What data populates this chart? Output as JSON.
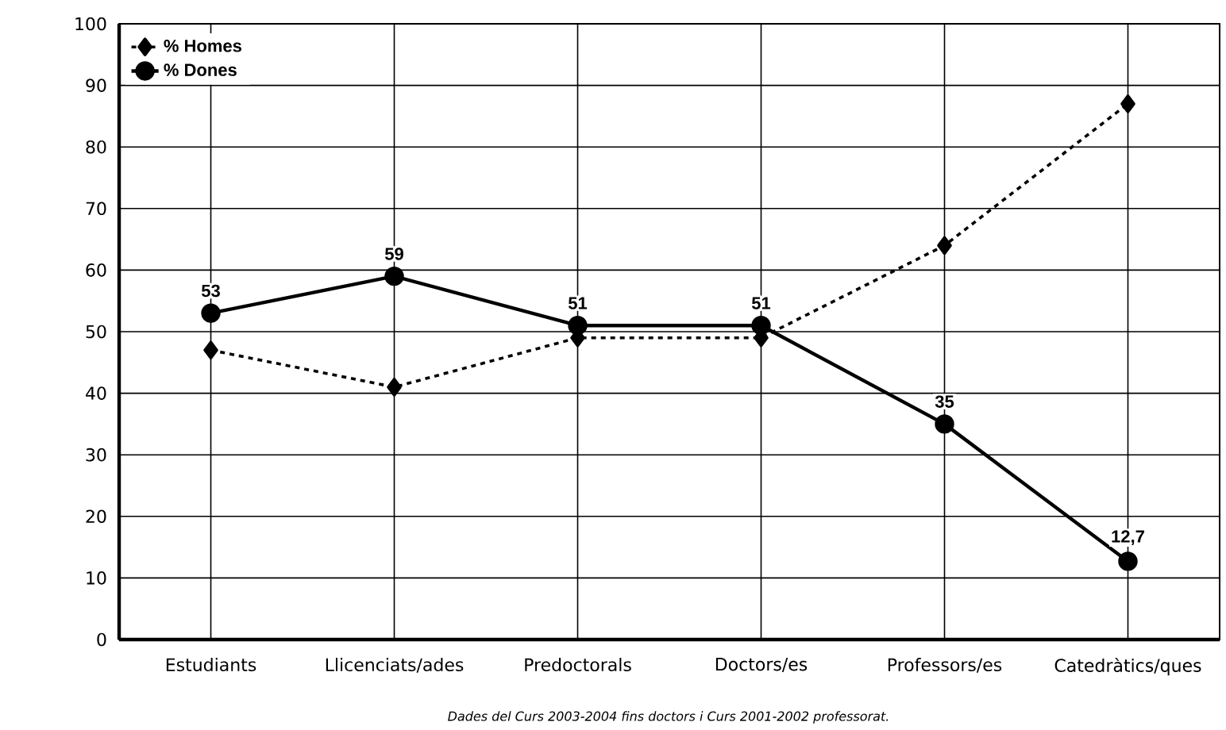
{
  "chart_data": {
    "type": "line",
    "categories": [
      "Estudiants",
      "Llicenciats/ades",
      "Predoctorals",
      "Doctors/es",
      "Professors/es",
      "Catedràtics/ques"
    ],
    "series": [
      {
        "name": "% Homes",
        "color": "#000000",
        "marker": "diamond",
        "line_style": "dotted",
        "values": [
          47,
          41,
          49,
          49,
          64,
          87
        ]
      },
      {
        "name": "% Dones",
        "color": "#000000",
        "marker": "circle",
        "line_style": "solid",
        "values": [
          53,
          59,
          51,
          51,
          35,
          12.7
        ],
        "value_labels": [
          "53",
          "59",
          "51",
          "51",
          "35",
          "12,7"
        ]
      }
    ],
    "ylim": [
      0,
      100
    ],
    "yticks": [
      0,
      10,
      20,
      30,
      40,
      50,
      60,
      70,
      80,
      90,
      100
    ],
    "grid": true,
    "legend": "top left",
    "annotations": [
      "Dades del Curs 2003-2004 fins doctors i Curs 2001-2002 professorat."
    ]
  }
}
